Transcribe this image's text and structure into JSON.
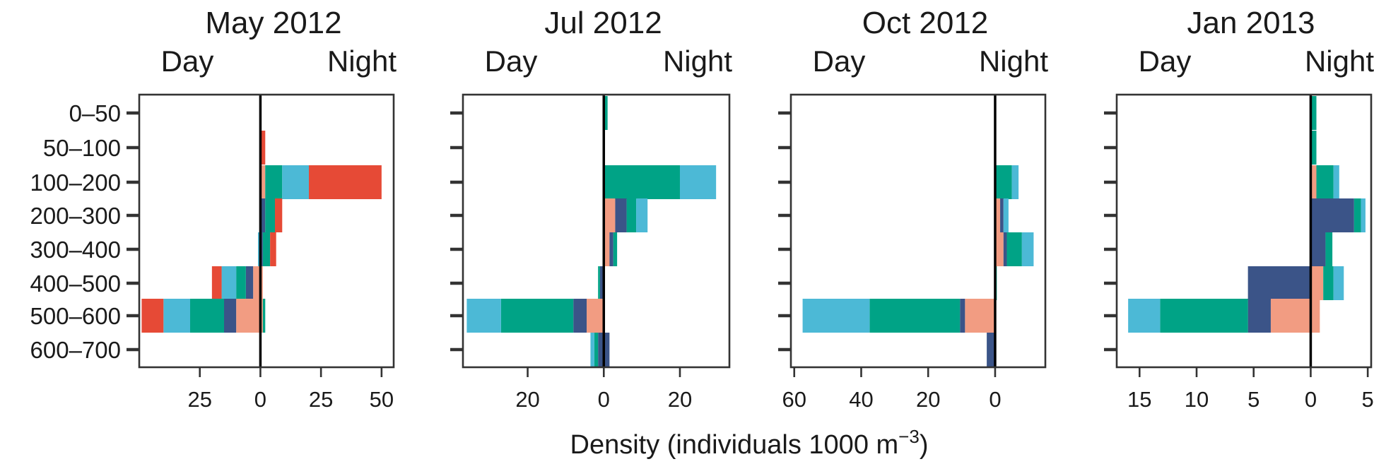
{
  "figure": {
    "xlabel_main": "Density (individuals 1000 m",
    "xlabel_exp": "−3",
    "xlabel_close": ")"
  },
  "colors": {
    "red": "#e64a36",
    "teal": "#00a386",
    "cyan": "#4cb9d6",
    "salmon": "#f29c82",
    "navy": "#3b5488"
  },
  "chart_data": [
    {
      "type": "bar",
      "orientation": "horizontal-diverging",
      "title": "May 2012",
      "left_label": "Day",
      "right_label": "Night",
      "categories": [
        "0–50",
        "50–100",
        "100–200",
        "200–300",
        "300–400",
        "400–500",
        "500–600",
        "600–700"
      ],
      "xlim": [
        -50,
        55
      ],
      "xticks": [
        -25,
        0,
        25,
        50
      ],
      "xtick_labels": [
        "25",
        "0",
        "25",
        "50"
      ],
      "day": [
        [],
        [],
        [],
        [],
        [
          {
            "color": "cyan",
            "value": 1
          }
        ],
        [
          {
            "color": "salmon",
            "value": 3
          },
          {
            "color": "navy",
            "value": 3
          },
          {
            "color": "teal",
            "value": 4
          },
          {
            "color": "cyan",
            "value": 6
          },
          {
            "color": "red",
            "value": 4
          }
        ],
        [
          {
            "color": "salmon",
            "value": 10
          },
          {
            "color": "navy",
            "value": 5
          },
          {
            "color": "teal",
            "value": 14
          },
          {
            "color": "cyan",
            "value": 11
          },
          {
            "color": "red",
            "value": 9
          }
        ],
        []
      ],
      "night": [
        [],
        [
          {
            "color": "red",
            "value": 2
          }
        ],
        [
          {
            "color": "salmon",
            "value": 2
          },
          {
            "color": "teal",
            "value": 7
          },
          {
            "color": "cyan",
            "value": 11
          },
          {
            "color": "red",
            "value": 30
          }
        ],
        [
          {
            "color": "navy",
            "value": 2
          },
          {
            "color": "teal",
            "value": 4
          },
          {
            "color": "red",
            "value": 3
          }
        ],
        [
          {
            "color": "navy",
            "value": 1
          },
          {
            "color": "teal",
            "value": 3
          },
          {
            "color": "red",
            "value": 2.5
          }
        ],
        [
          {
            "color": "salmon",
            "value": 1
          }
        ],
        [
          {
            "color": "salmon",
            "value": 1
          },
          {
            "color": "teal",
            "value": 1
          }
        ],
        []
      ]
    },
    {
      "type": "bar",
      "orientation": "horizontal-diverging",
      "title": "Jul 2012",
      "left_label": "Day",
      "right_label": "Night",
      "categories": [
        "0–50",
        "50–100",
        "100–200",
        "200–300",
        "300–400",
        "400–500",
        "500–600",
        "600–700"
      ],
      "xlim": [
        -37,
        33
      ],
      "xticks": [
        -20,
        0,
        20
      ],
      "xtick_labels": [
        "20",
        "0",
        "20"
      ],
      "day": [
        [],
        [],
        [],
        [],
        [],
        [
          {
            "color": "navy",
            "value": 1
          },
          {
            "color": "teal",
            "value": 0.5
          }
        ],
        [
          {
            "color": "salmon",
            "value": 4.5
          },
          {
            "color": "navy",
            "value": 3.5
          },
          {
            "color": "teal",
            "value": 19
          },
          {
            "color": "cyan",
            "value": 9
          }
        ],
        [
          {
            "color": "navy",
            "value": 1.5
          },
          {
            "color": "teal",
            "value": 1
          },
          {
            "color": "cyan",
            "value": 1
          }
        ]
      ],
      "night": [
        [
          {
            "color": "teal",
            "value": 1
          }
        ],
        [],
        [
          {
            "color": "teal",
            "value": 20
          },
          {
            "color": "cyan",
            "value": 9.5
          }
        ],
        [
          {
            "color": "salmon",
            "value": 3
          },
          {
            "color": "navy",
            "value": 3
          },
          {
            "color": "teal",
            "value": 2.5
          },
          {
            "color": "cyan",
            "value": 3
          }
        ],
        [
          {
            "color": "salmon",
            "value": 1.5
          },
          {
            "color": "navy",
            "value": 1
          },
          {
            "color": "teal",
            "value": 1
          }
        ],
        [],
        [],
        [
          {
            "color": "navy",
            "value": 1.5
          }
        ]
      ]
    },
    {
      "type": "bar",
      "orientation": "horizontal-diverging",
      "title": "Oct 2012",
      "left_label": "Day",
      "right_label": "Night",
      "categories": [
        "0–50",
        "50–100",
        "100–200",
        "200–300",
        "300–400",
        "400–500",
        "500–600",
        "600–700"
      ],
      "xlim": [
        -61,
        15
      ],
      "xticks": [
        -60,
        -40,
        -20,
        0
      ],
      "xtick_labels": [
        "60",
        "40",
        "20",
        "0"
      ],
      "day": [
        [],
        [],
        [],
        [],
        [],
        [],
        [
          {
            "color": "salmon",
            "value": 9
          },
          {
            "color": "navy",
            "value": 1.5
          },
          {
            "color": "teal",
            "value": 27
          },
          {
            "color": "cyan",
            "value": 20
          }
        ],
        [
          {
            "color": "navy",
            "value": 2.5
          }
        ]
      ],
      "night": [
        [],
        [],
        [
          {
            "color": "teal",
            "value": 5
          },
          {
            "color": "cyan",
            "value": 2
          }
        ],
        [
          {
            "color": "salmon",
            "value": 1.5
          },
          {
            "color": "navy",
            "value": 1
          },
          {
            "color": "cyan",
            "value": 1.5
          }
        ],
        [
          {
            "color": "salmon",
            "value": 2.5
          },
          {
            "color": "navy",
            "value": 1
          },
          {
            "color": "teal",
            "value": 4.5
          },
          {
            "color": "cyan",
            "value": 3.5
          }
        ],
        [
          {
            "color": "teal",
            "value": 0.5
          }
        ],
        [],
        []
      ]
    },
    {
      "type": "bar",
      "orientation": "horizontal-diverging",
      "title": "Jan 2013",
      "left_label": "Day",
      "right_label": "Night",
      "categories": [
        "0–50",
        "50–100",
        "100–200",
        "200–300",
        "300–400",
        "400–500",
        "500–600",
        "600–700"
      ],
      "xlim": [
        -17,
        5.3
      ],
      "xticks": [
        -15,
        -10,
        -5,
        0,
        5
      ],
      "xtick_labels": [
        "15",
        "10",
        "5",
        "0",
        "5"
      ],
      "day": [
        [],
        [],
        [],
        [],
        [],
        [
          {
            "color": "navy",
            "value": 5.5
          }
        ],
        [
          {
            "color": "salmon",
            "value": 3.5
          },
          {
            "color": "navy",
            "value": 2
          },
          {
            "color": "teal",
            "value": 7.7
          },
          {
            "color": "cyan",
            "value": 2.8
          }
        ],
        []
      ],
      "night": [
        [
          {
            "color": "teal",
            "value": 0.5
          }
        ],
        [
          {
            "color": "teal",
            "value": 0.5
          }
        ],
        [
          {
            "color": "salmon",
            "value": 0.5
          },
          {
            "color": "teal",
            "value": 1.5
          },
          {
            "color": "cyan",
            "value": 0.5
          }
        ],
        [
          {
            "color": "navy",
            "value": 3.8
          },
          {
            "color": "teal",
            "value": 0.6
          },
          {
            "color": "cyan",
            "value": 0.4
          }
        ],
        [
          {
            "color": "navy",
            "value": 1.3
          },
          {
            "color": "teal",
            "value": 0.6
          }
        ],
        [
          {
            "color": "salmon",
            "value": 1.1
          },
          {
            "color": "teal",
            "value": 0.9
          },
          {
            "color": "cyan",
            "value": 0.9
          }
        ],
        [
          {
            "color": "salmon",
            "value": 0.8
          }
        ],
        []
      ]
    }
  ]
}
